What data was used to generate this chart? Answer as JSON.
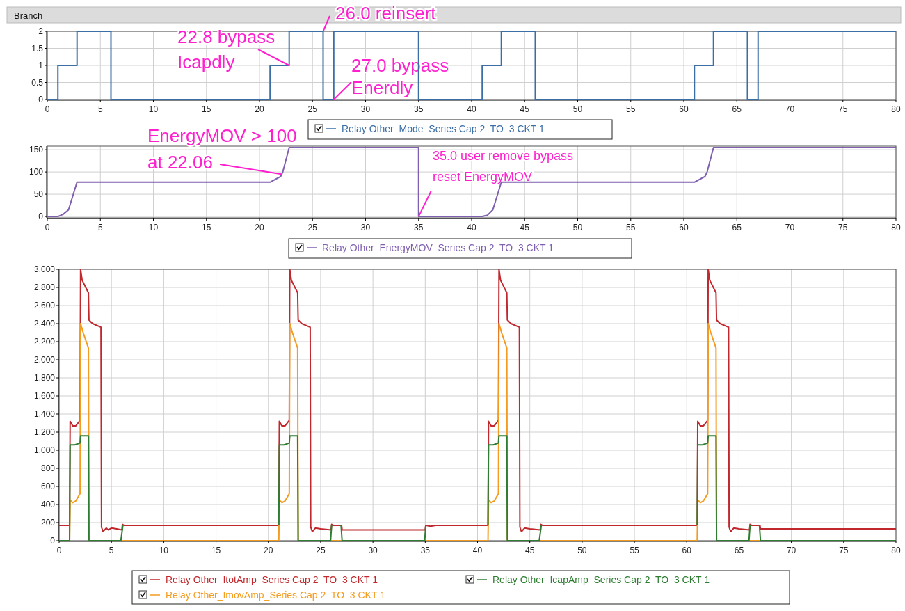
{
  "chart_data": [
    {
      "type": "step",
      "title": "Branch",
      "xlim": [
        0,
        80
      ],
      "xticks": [
        0,
        5,
        10,
        15,
        20,
        25,
        30,
        35,
        40,
        45,
        50,
        55,
        60,
        65,
        70,
        75,
        80
      ],
      "ylim": [
        0,
        2
      ],
      "yticks": [
        0,
        0.5,
        1,
        1.5,
        2
      ],
      "grid": true,
      "legend": "bottom",
      "series": [
        {
          "name": "Relay Other_Mode_Series Cap 2  TO  3 CKT 1",
          "color": "#3a6ea5",
          "x": [
            0,
            1,
            2.8,
            6,
            21,
            22.8,
            26,
            27,
            35,
            41,
            42.8,
            46,
            61,
            62.8,
            66,
            67,
            80
          ],
          "values": [
            0,
            1,
            2,
            0,
            1,
            2,
            0,
            2,
            0,
            1,
            2,
            0,
            1,
            2,
            0,
            2,
            2
          ]
        }
      ],
      "annotations": [
        {
          "text": "22.8 bypass\nIcapdly",
          "x": 22.8,
          "y": 1
        },
        {
          "text": "26.0 reinsert",
          "x": 26,
          "y": 2
        },
        {
          "text": "27.0 bypass\nEnerdly",
          "x": 27,
          "y": 0
        }
      ]
    },
    {
      "type": "line",
      "xlim": [
        0,
        80
      ],
      "xticks": [
        0,
        5,
        10,
        15,
        20,
        25,
        30,
        35,
        40,
        45,
        50,
        55,
        60,
        65,
        70,
        75,
        80
      ],
      "ylim": [
        -3,
        158
      ],
      "yticks": [
        0,
        50,
        100,
        150
      ],
      "grid": true,
      "legend": "bottom",
      "series": [
        {
          "name": "Relay Other_EnergyMOV_Series Cap 2  TO  3 CKT 1",
          "color": "#7f5fb0",
          "x": [
            0,
            1,
            1.5,
            2,
            2.8,
            21,
            22,
            22.2,
            22.8,
            35,
            35,
            41,
            41.5,
            42,
            42.8,
            61,
            62,
            62.2,
            62.8,
            80
          ],
          "values": [
            0,
            0,
            5,
            15,
            77,
            77,
            90,
            100,
            155,
            155,
            0,
            0,
            3,
            15,
            77,
            77,
            90,
            100,
            155,
            155
          ]
        }
      ],
      "annotations": [
        {
          "text": "EnergyMOV > 100\nat 22.06",
          "x": 22.06,
          "y": 95
        },
        {
          "text": "35.0 user remove bypass\nreset EnergyMOV",
          "x": 35,
          "y": 0
        }
      ]
    },
    {
      "type": "line",
      "xlim": [
        0,
        80
      ],
      "xticks": [
        0,
        5,
        10,
        15,
        20,
        25,
        30,
        35,
        40,
        45,
        50,
        55,
        60,
        65,
        70,
        75,
        80
      ],
      "ylim": [
        0,
        3000
      ],
      "yticks": [
        0,
        200,
        400,
        600,
        800,
        {
          "value": 1000,
          "label": "1,000"
        },
        {
          "value": 1200,
          "label": "1,200"
        },
        {
          "value": 1400,
          "label": "1,400"
        },
        {
          "value": 1600,
          "label": "1,600"
        },
        {
          "value": 1800,
          "label": "1,800"
        },
        {
          "value": 2000,
          "label": "2,000"
        },
        {
          "value": 2200,
          "label": "2,200"
        },
        {
          "value": 2400,
          "label": "2,400"
        },
        {
          "value": 2600,
          "label": "2,600"
        },
        {
          "value": 2800,
          "label": "2,800"
        },
        {
          "value": 3000,
          "label": "3,000"
        }
      ],
      "grid": true,
      "legend": "bottom",
      "series": [
        {
          "name": "Relay Other_ItotAmp_Series Cap 2  TO  3 CKT 1",
          "color": "#c0282d",
          "x": [
            0,
            1,
            1.05,
            1.3,
            1.6,
            2,
            2.05,
            2.2,
            2.8,
            2.85,
            3.2,
            4,
            4.05,
            4.2,
            4.5,
            4.7,
            5,
            5.5,
            6,
            6.05,
            6.2,
            21,
            21.05,
            21.3,
            21.6,
            22,
            22.05,
            22.2,
            22.8,
            22.85,
            23.2,
            24,
            24.05,
            24.2,
            24.5,
            25,
            26,
            26.05,
            26.2,
            27,
            27.05,
            35,
            35.05,
            35.5,
            36,
            41,
            41.05,
            41.3,
            41.6,
            42,
            42.05,
            42.2,
            42.8,
            42.85,
            43.2,
            44,
            44.05,
            44.2,
            44.5,
            45,
            46,
            46.05,
            46.2,
            61,
            61.05,
            61.3,
            61.6,
            62,
            62.05,
            62.2,
            62.8,
            62.85,
            63.2,
            64,
            64.05,
            64.2,
            64.5,
            65,
            66,
            66.05,
            66.2,
            67,
            67.05,
            80
          ],
          "values": [
            170,
            170,
            1320,
            1270,
            1270,
            1330,
            3000,
            2880,
            2740,
            2440,
            2400,
            2360,
            150,
            100,
            140,
            120,
            140,
            130,
            120,
            180,
            170,
            170,
            1320,
            1270,
            1270,
            1330,
            3000,
            2880,
            2740,
            2440,
            2400,
            2360,
            150,
            100,
            140,
            130,
            120,
            180,
            170,
            170,
            120,
            120,
            170,
            160,
            170,
            170,
            1320,
            1270,
            1270,
            1330,
            3000,
            2880,
            2740,
            2440,
            2400,
            2360,
            150,
            100,
            140,
            130,
            120,
            180,
            170,
            170,
            1320,
            1270,
            1270,
            1330,
            3000,
            2880,
            2740,
            2440,
            2400,
            2360,
            150,
            100,
            140,
            130,
            120,
            180,
            170,
            170,
            130,
            130
          ]
        },
        {
          "name": "Relay Other_ImovAmp_Series Cap 2  TO  3 CKT 1",
          "color": "#f39c1f",
          "x": [
            0,
            1,
            1.05,
            1.3,
            1.6,
            2,
            2.05,
            2.3,
            2.8,
            2.85,
            21,
            21.05,
            21.3,
            21.6,
            22,
            22.05,
            22.3,
            22.8,
            22.85,
            41,
            41.05,
            41.3,
            41.6,
            42,
            42.05,
            42.3,
            42.8,
            42.85,
            61,
            61.05,
            61.3,
            61.6,
            62,
            62.05,
            62.3,
            62.8,
            62.85,
            80
          ],
          "values": [
            0,
            0,
            450,
            420,
            440,
            520,
            2400,
            2300,
            2130,
            0,
            0,
            450,
            420,
            440,
            520,
            2400,
            2300,
            2130,
            0,
            0,
            450,
            420,
            440,
            520,
            2400,
            2300,
            2130,
            0,
            0,
            450,
            420,
            440,
            520,
            2400,
            2300,
            2130,
            0,
            0
          ]
        },
        {
          "name": "Relay Other_IcapAmp_Series Cap 2  TO  3 CKT 1",
          "color": "#2e7d32",
          "x": [
            0,
            1,
            1.05,
            1.5,
            2,
            2.05,
            2.8,
            2.85,
            5.9,
            6.1,
            10,
            21,
            21.05,
            21.5,
            22,
            22.05,
            22.8,
            22.85,
            25.95,
            26.05,
            26.5,
            26.95,
            27.05,
            34.95,
            35.05,
            38,
            41,
            41.05,
            41.5,
            42,
            42.05,
            42.8,
            42.85,
            45.9,
            46.1,
            50,
            61,
            61.05,
            61.5,
            62,
            62.05,
            62.8,
            62.85,
            65.95,
            66.05,
            66.5,
            66.95,
            67.05,
            80
          ],
          "values": [
            0,
            0,
            1060,
            1060,
            1080,
            1160,
            1160,
            0,
            0,
            170,
            null,
            170,
            1060,
            1060,
            1080,
            1160,
            1160,
            0,
            0,
            170,
            null,
            170,
            0,
            0,
            170,
            null,
            170,
            1060,
            1060,
            1080,
            1160,
            1160,
            0,
            0,
            170,
            null,
            170,
            1060,
            1060,
            1080,
            1160,
            1160,
            0,
            0,
            170,
            null,
            170,
            0,
            0
          ]
        }
      ]
    }
  ]
}
